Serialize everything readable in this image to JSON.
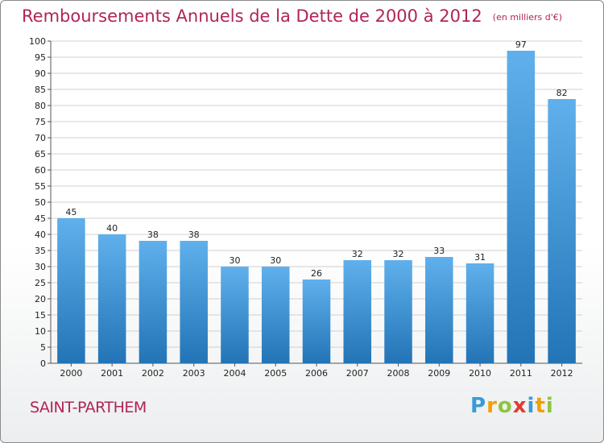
{
  "title": "Remboursements Annuels de la Dette de 2000 à 2012",
  "unit": "(en milliers d'€)",
  "commune": "SAINT-PARTHEM",
  "logo": {
    "letters": [
      "P",
      "r",
      "o",
      "x",
      "i",
      "t",
      "i"
    ],
    "colors": [
      "#3a9ad9",
      "#f0a000",
      "#8cc63f",
      "#e03c31",
      "#3a9ad9",
      "#f0a000",
      "#8cc63f"
    ]
  },
  "colors": {
    "bar_light": "#5fb0ec",
    "bar_dark": "#2374b6",
    "title": "#b0245a",
    "grid": "#d0d0d0"
  },
  "chart_data": {
    "type": "bar",
    "categories": [
      "2000",
      "2001",
      "2002",
      "2003",
      "2004",
      "2005",
      "2006",
      "2007",
      "2008",
      "2009",
      "2010",
      "2011",
      "2012"
    ],
    "values": [
      45,
      40,
      38,
      38,
      30,
      30,
      26,
      32,
      32,
      33,
      31,
      97,
      82
    ],
    "ylim": [
      0,
      100
    ],
    "yticks": [
      0,
      5,
      10,
      15,
      20,
      25,
      30,
      35,
      40,
      45,
      50,
      55,
      60,
      65,
      70,
      75,
      80,
      85,
      90,
      95,
      100
    ],
    "grid": true,
    "data_labels": true
  }
}
